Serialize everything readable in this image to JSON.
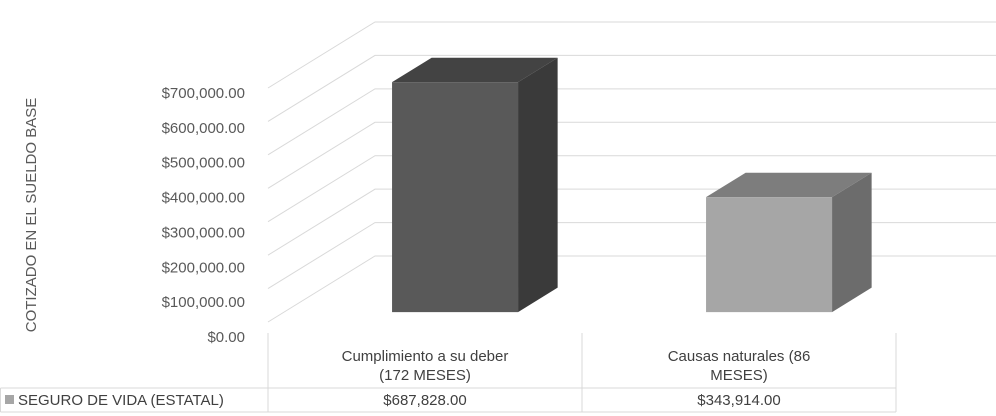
{
  "chart_data": {
    "type": "bar3d",
    "y_axis_label": "COTIZADO EN EL SUELDO BASE",
    "categories": [
      "Cumplimiento a su deber (172 MESES)",
      "Causas naturales (86 MESES)"
    ],
    "series": [
      {
        "name": "SEGURO DE VIDA (ESTATAL)",
        "color": "#a6a6a6",
        "point_colors": [
          "#595959",
          "#a6a6a6"
        ],
        "values": [
          687828,
          343914
        ],
        "value_labels": [
          "$687,828.00",
          "$343,914.00"
        ]
      }
    ],
    "ylim": [
      0,
      700000
    ],
    "yticks": [
      {
        "value": 0,
        "label": "$0.00"
      },
      {
        "value": 100000,
        "label": "$100,000.00"
      },
      {
        "value": 200000,
        "label": "$200,000.00"
      },
      {
        "value": 300000,
        "label": "$300,000.00"
      },
      {
        "value": 400000,
        "label": "$400,000.00"
      },
      {
        "value": 500000,
        "label": "$500,000.00"
      },
      {
        "value": 600000,
        "label": "$600,000.00"
      },
      {
        "value": 700000,
        "label": "$700,000.00"
      }
    ],
    "grid": true,
    "data_table": true
  }
}
